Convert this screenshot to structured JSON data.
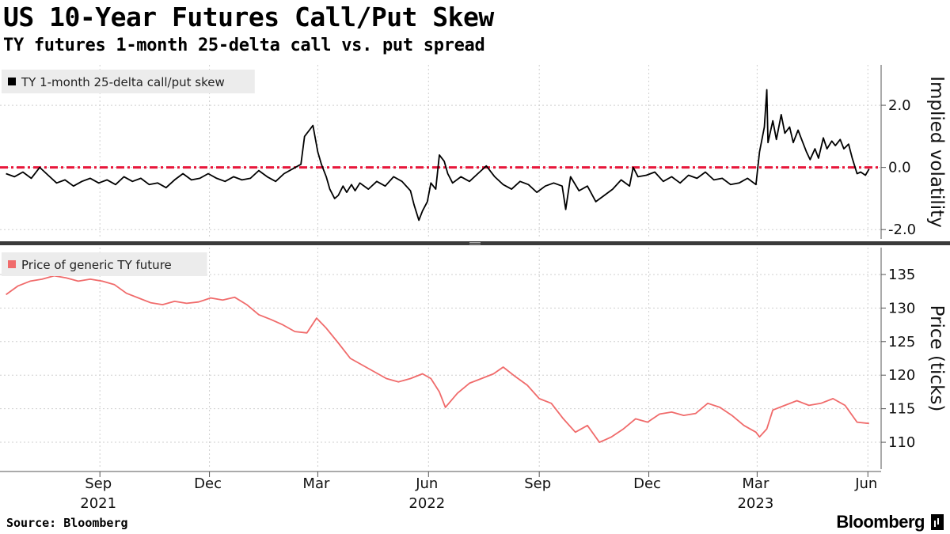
{
  "header": {
    "title": "US 10-Year Futures Call/Put Skew",
    "subtitle": "TY futures 1-month 25-delta call vs. put spread"
  },
  "footer": {
    "source": "Source: Bloomberg",
    "brand": "Bloomberg"
  },
  "chart_data": [
    {
      "type": "line",
      "ylabel": "Implied volatility",
      "ylim": [
        -2.3,
        3.3
      ],
      "yticks": [
        {
          "value": 2.0,
          "label": "2.0"
        },
        {
          "value": 0.0,
          "label": "0.0"
        },
        {
          "value": -2.0,
          "label": "-2.0"
        }
      ],
      "grid": true,
      "legend_placement": "top-left",
      "series": [
        {
          "name": "TY 1-month 25-delta call/put skew",
          "color": "#000000",
          "points": [
            [
              "2021-06-15",
              -0.2
            ],
            [
              "2021-06-22",
              -0.3
            ],
            [
              "2021-06-29",
              -0.15
            ],
            [
              "2021-07-06",
              -0.35
            ],
            [
              "2021-07-13",
              0.0
            ],
            [
              "2021-07-20",
              -0.25
            ],
            [
              "2021-07-27",
              -0.5
            ],
            [
              "2021-08-03",
              -0.4
            ],
            [
              "2021-08-10",
              -0.6
            ],
            [
              "2021-08-17",
              -0.45
            ],
            [
              "2021-08-24",
              -0.35
            ],
            [
              "2021-08-31",
              -0.5
            ],
            [
              "2021-09-07",
              -0.4
            ],
            [
              "2021-09-14",
              -0.55
            ],
            [
              "2021-09-21",
              -0.3
            ],
            [
              "2021-09-28",
              -0.45
            ],
            [
              "2021-10-05",
              -0.35
            ],
            [
              "2021-10-12",
              -0.55
            ],
            [
              "2021-10-19",
              -0.5
            ],
            [
              "2021-10-26",
              -0.65
            ],
            [
              "2021-11-02",
              -0.4
            ],
            [
              "2021-11-09",
              -0.2
            ],
            [
              "2021-11-16",
              -0.4
            ],
            [
              "2021-11-23",
              -0.35
            ],
            [
              "2021-11-30",
              -0.2
            ],
            [
              "2021-12-07",
              -0.35
            ],
            [
              "2021-12-14",
              -0.45
            ],
            [
              "2021-12-21",
              -0.3
            ],
            [
              "2021-12-28",
              -0.4
            ],
            [
              "2022-01-04",
              -0.35
            ],
            [
              "2022-01-11",
              -0.1
            ],
            [
              "2022-01-18",
              -0.3
            ],
            [
              "2022-01-25",
              -0.45
            ],
            [
              "2022-02-01",
              -0.2
            ],
            [
              "2022-02-08",
              -0.05
            ],
            [
              "2022-02-15",
              0.1
            ],
            [
              "2022-02-18",
              1.0
            ],
            [
              "2022-02-22",
              1.2
            ],
            [
              "2022-02-25",
              1.35
            ],
            [
              "2022-03-01",
              0.5
            ],
            [
              "2022-03-04",
              0.1
            ],
            [
              "2022-03-08",
              -0.3
            ],
            [
              "2022-03-11",
              -0.7
            ],
            [
              "2022-03-15",
              -1.0
            ],
            [
              "2022-03-18",
              -0.9
            ],
            [
              "2022-03-22",
              -0.6
            ],
            [
              "2022-03-25",
              -0.8
            ],
            [
              "2022-03-29",
              -0.55
            ],
            [
              "2022-04-01",
              -0.75
            ],
            [
              "2022-04-05",
              -0.5
            ],
            [
              "2022-04-12",
              -0.7
            ],
            [
              "2022-04-19",
              -0.45
            ],
            [
              "2022-04-26",
              -0.6
            ],
            [
              "2022-05-03",
              -0.3
            ],
            [
              "2022-05-10",
              -0.45
            ],
            [
              "2022-05-17",
              -0.75
            ],
            [
              "2022-05-20",
              -1.2
            ],
            [
              "2022-05-24",
              -1.7
            ],
            [
              "2022-05-27",
              -1.4
            ],
            [
              "2022-05-31",
              -1.1
            ],
            [
              "2022-06-03",
              -0.5
            ],
            [
              "2022-06-07",
              -0.7
            ],
            [
              "2022-06-10",
              0.4
            ],
            [
              "2022-06-14",
              0.2
            ],
            [
              "2022-06-17",
              -0.2
            ],
            [
              "2022-06-21",
              -0.5
            ],
            [
              "2022-06-28",
              -0.3
            ],
            [
              "2022-07-05",
              -0.45
            ],
            [
              "2022-07-12",
              -0.2
            ],
            [
              "2022-07-19",
              0.05
            ],
            [
              "2022-07-26",
              -0.3
            ],
            [
              "2022-08-02",
              -0.55
            ],
            [
              "2022-08-09",
              -0.7
            ],
            [
              "2022-08-16",
              -0.45
            ],
            [
              "2022-08-23",
              -0.55
            ],
            [
              "2022-08-30",
              -0.8
            ],
            [
              "2022-09-06",
              -0.6
            ],
            [
              "2022-09-13",
              -0.5
            ],
            [
              "2022-09-20",
              -0.6
            ],
            [
              "2022-09-23",
              -1.35
            ],
            [
              "2022-09-27",
              -0.3
            ],
            [
              "2022-10-04",
              -0.75
            ],
            [
              "2022-10-11",
              -0.6
            ],
            [
              "2022-10-18",
              -1.1
            ],
            [
              "2022-10-25",
              -0.9
            ],
            [
              "2022-11-01",
              -0.7
            ],
            [
              "2022-11-08",
              -0.4
            ],
            [
              "2022-11-15",
              -0.6
            ],
            [
              "2022-11-18",
              0.0
            ],
            [
              "2022-11-22",
              -0.3
            ],
            [
              "2022-11-29",
              -0.25
            ],
            [
              "2022-12-06",
              -0.15
            ],
            [
              "2022-12-13",
              -0.45
            ],
            [
              "2022-12-20",
              -0.3
            ],
            [
              "2022-12-27",
              -0.5
            ],
            [
              "2023-01-03",
              -0.25
            ],
            [
              "2023-01-10",
              -0.35
            ],
            [
              "2023-01-17",
              -0.15
            ],
            [
              "2023-01-24",
              -0.4
            ],
            [
              "2023-01-31",
              -0.35
            ],
            [
              "2023-02-07",
              -0.55
            ],
            [
              "2023-02-14",
              -0.5
            ],
            [
              "2023-02-21",
              -0.35
            ],
            [
              "2023-02-28",
              -0.55
            ],
            [
              "2023-03-03",
              0.5
            ],
            [
              "2023-03-07",
              1.3
            ],
            [
              "2023-03-09",
              2.5
            ],
            [
              "2023-03-10",
              0.8
            ],
            [
              "2023-03-14",
              1.5
            ],
            [
              "2023-03-17",
              0.9
            ],
            [
              "2023-03-21",
              1.7
            ],
            [
              "2023-03-24",
              1.1
            ],
            [
              "2023-03-28",
              1.3
            ],
            [
              "2023-03-31",
              0.8
            ],
            [
              "2023-04-04",
              1.2
            ],
            [
              "2023-04-07",
              0.9
            ],
            [
              "2023-04-11",
              0.5
            ],
            [
              "2023-04-14",
              0.25
            ],
            [
              "2023-04-18",
              0.6
            ],
            [
              "2023-04-21",
              0.3
            ],
            [
              "2023-04-25",
              0.95
            ],
            [
              "2023-04-28",
              0.6
            ],
            [
              "2023-05-02",
              0.85
            ],
            [
              "2023-05-05",
              0.7
            ],
            [
              "2023-05-09",
              0.9
            ],
            [
              "2023-05-12",
              0.6
            ],
            [
              "2023-05-16",
              0.75
            ],
            [
              "2023-05-19",
              0.3
            ],
            [
              "2023-05-23",
              -0.2
            ],
            [
              "2023-05-26",
              -0.15
            ],
            [
              "2023-05-30",
              -0.25
            ],
            [
              "2023-06-02",
              -0.05
            ]
          ]
        }
      ],
      "reference_line": {
        "value": 0.0,
        "color": "#e8173b",
        "style": "dash-dot"
      }
    },
    {
      "type": "line",
      "ylabel": "Price (ticks)",
      "ylim": [
        106,
        139
      ],
      "yticks": [
        {
          "value": 135,
          "label": "135"
        },
        {
          "value": 130,
          "label": "130"
        },
        {
          "value": 125,
          "label": "125"
        },
        {
          "value": 120,
          "label": "120"
        },
        {
          "value": 115,
          "label": "115"
        },
        {
          "value": 110,
          "label": "110"
        }
      ],
      "grid": true,
      "legend_placement": "top-left",
      "series": [
        {
          "name": "Price of generic TY future",
          "color": "#f06b6b",
          "points": [
            [
              "2021-06-15",
              132.0
            ],
            [
              "2021-06-25",
              133.3
            ],
            [
              "2021-07-05",
              134.0
            ],
            [
              "2021-07-15",
              134.3
            ],
            [
              "2021-07-25",
              134.8
            ],
            [
              "2021-08-04",
              134.5
            ],
            [
              "2021-08-14",
              134.0
            ],
            [
              "2021-08-24",
              134.3
            ],
            [
              "2021-09-03",
              134.0
            ],
            [
              "2021-09-13",
              133.5
            ],
            [
              "2021-09-23",
              132.2
            ],
            [
              "2021-10-03",
              131.5
            ],
            [
              "2021-10-13",
              130.8
            ],
            [
              "2021-10-23",
              130.5
            ],
            [
              "2021-11-02",
              131.0
            ],
            [
              "2021-11-12",
              130.7
            ],
            [
              "2021-11-22",
              130.9
            ],
            [
              "2021-12-02",
              131.5
            ],
            [
              "2021-12-12",
              131.2
            ],
            [
              "2021-12-22",
              131.6
            ],
            [
              "2022-01-01",
              130.5
            ],
            [
              "2022-01-11",
              129.0
            ],
            [
              "2022-01-21",
              128.3
            ],
            [
              "2022-01-31",
              127.5
            ],
            [
              "2022-02-10",
              126.5
            ],
            [
              "2022-02-20",
              126.3
            ],
            [
              "2022-02-28",
              128.5
            ],
            [
              "2022-03-08",
              127.0
            ],
            [
              "2022-03-18",
              124.8
            ],
            [
              "2022-03-28",
              122.5
            ],
            [
              "2022-04-07",
              121.5
            ],
            [
              "2022-04-17",
              120.5
            ],
            [
              "2022-04-27",
              119.5
            ],
            [
              "2022-05-07",
              119.0
            ],
            [
              "2022-05-17",
              119.5
            ],
            [
              "2022-05-27",
              120.2
            ],
            [
              "2022-06-03",
              119.5
            ],
            [
              "2022-06-10",
              117.5
            ],
            [
              "2022-06-15",
              115.2
            ],
            [
              "2022-06-25",
              117.3
            ],
            [
              "2022-07-05",
              118.8
            ],
            [
              "2022-07-15",
              119.5
            ],
            [
              "2022-07-25",
              120.2
            ],
            [
              "2022-08-02",
              121.2
            ],
            [
              "2022-08-12",
              119.8
            ],
            [
              "2022-08-22",
              118.5
            ],
            [
              "2022-09-01",
              116.5
            ],
            [
              "2022-09-11",
              115.8
            ],
            [
              "2022-09-21",
              113.5
            ],
            [
              "2022-10-01",
              111.5
            ],
            [
              "2022-10-11",
              112.5
            ],
            [
              "2022-10-21",
              110.0
            ],
            [
              "2022-10-31",
              110.8
            ],
            [
              "2022-11-10",
              112.0
            ],
            [
              "2022-11-20",
              113.5
            ],
            [
              "2022-11-30",
              113.0
            ],
            [
              "2022-12-10",
              114.2
            ],
            [
              "2022-12-20",
              114.5
            ],
            [
              "2022-12-30",
              114.0
            ],
            [
              "2023-01-09",
              114.3
            ],
            [
              "2023-01-19",
              115.8
            ],
            [
              "2023-01-29",
              115.2
            ],
            [
              "2023-02-08",
              114.0
            ],
            [
              "2023-02-18",
              112.5
            ],
            [
              "2023-02-28",
              111.5
            ],
            [
              "2023-03-03",
              110.8
            ],
            [
              "2023-03-09",
              112.0
            ],
            [
              "2023-03-14",
              114.8
            ],
            [
              "2023-03-24",
              115.5
            ],
            [
              "2023-04-03",
              116.2
            ],
            [
              "2023-04-13",
              115.5
            ],
            [
              "2023-04-23",
              115.8
            ],
            [
              "2023-05-03",
              116.5
            ],
            [
              "2023-05-13",
              115.5
            ],
            [
              "2023-05-23",
              113.0
            ],
            [
              "2023-06-02",
              112.8
            ]
          ]
        }
      ]
    }
  ],
  "x_axis": {
    "ticks": [
      {
        "date": "2021-09-01",
        "label": "Sep",
        "year": "2021"
      },
      {
        "date": "2021-12-01",
        "label": "Dec",
        "year": ""
      },
      {
        "date": "2022-03-01",
        "label": "Mar",
        "year": ""
      },
      {
        "date": "2022-06-01",
        "label": "Jun",
        "year": "2022"
      },
      {
        "date": "2022-09-01",
        "label": "Sep",
        "year": ""
      },
      {
        "date": "2022-12-01",
        "label": "Dec",
        "year": ""
      },
      {
        "date": "2023-03-01",
        "label": "Mar",
        "year": "2023"
      },
      {
        "date": "2023-06-01",
        "label": "Jun",
        "year": ""
      }
    ]
  }
}
